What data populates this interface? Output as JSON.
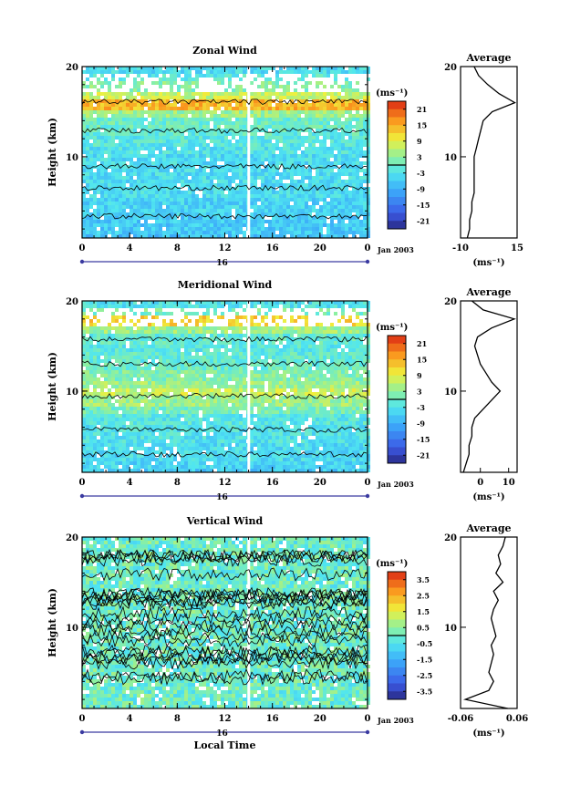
{
  "chart_data": [
    {
      "type": "heatmap",
      "title": "Zonal Wind",
      "xlabel": "",
      "ylabel": "Height (km)",
      "x_ticks": [
        "0",
        "4",
        "8",
        "12",
        "16",
        "20",
        "0"
      ],
      "y_ticks": [
        "10",
        "20"
      ],
      "xlim": [
        0,
        24
      ],
      "ylim": [
        1,
        20
      ],
      "date_label": "16",
      "date_suffix": "Jan 2003",
      "colorbar": {
        "unit": "(ms⁻¹)",
        "range": [
          -24,
          24
        ],
        "ticks": [
          "21",
          "15",
          "9",
          "3",
          "-3",
          "-9",
          "-15",
          "-21"
        ],
        "zero_line": 0
      },
      "profile": {
        "title": "Average",
        "xlabel": "(ms⁻¹)",
        "x_ticks": [
          "-10",
          "15"
        ],
        "xlim": [
          -10,
          15
        ],
        "y_ticks": [
          "10",
          "20"
        ],
        "height_km": [
          1,
          2,
          3,
          4,
          5,
          6,
          7,
          8,
          9,
          10,
          11,
          12,
          13,
          14,
          15,
          16,
          17,
          18,
          19,
          20
        ],
        "values": [
          -7,
          -6,
          -6,
          -5,
          -5,
          -4,
          -4,
          -4,
          -4,
          -4,
          -3,
          -2,
          -1,
          0,
          4,
          14,
          7,
          2,
          -2,
          -4
        ]
      }
    },
    {
      "type": "heatmap",
      "title": "Meridional Wind",
      "xlabel": "",
      "ylabel": "Height (km)",
      "x_ticks": [
        "0",
        "4",
        "8",
        "12",
        "16",
        "20",
        "0"
      ],
      "y_ticks": [
        "10",
        "20"
      ],
      "xlim": [
        0,
        24
      ],
      "ylim": [
        1,
        20
      ],
      "date_label": "16",
      "date_suffix": "Jan 2003",
      "colorbar": {
        "unit": "(ms⁻¹)",
        "range": [
          -24,
          24
        ],
        "ticks": [
          "21",
          "15",
          "9",
          "3",
          "-3",
          "-9",
          "-15",
          "-21"
        ],
        "zero_line": 0
      },
      "profile": {
        "title": "Average",
        "xlabel": "(ms⁻¹)",
        "x_ticks": [
          "0",
          "10"
        ],
        "xlim": [
          -7,
          13
        ],
        "y_ticks": [
          "10",
          "20"
        ],
        "height_km": [
          1,
          2,
          3,
          4,
          5,
          6,
          7,
          8,
          9,
          10,
          11,
          12,
          13,
          14,
          15,
          16,
          17,
          18,
          19,
          20
        ],
        "values": [
          -6,
          -5,
          -4,
          -4,
          -3,
          -3,
          -2,
          1,
          4,
          7,
          4,
          2,
          0,
          -1,
          -2,
          -1,
          4,
          12,
          1,
          -3
        ]
      }
    },
    {
      "type": "heatmap",
      "title": "Vertical Wind",
      "xlabel": "Local Time",
      "ylabel": "Height (km)",
      "x_ticks": [
        "0",
        "4",
        "8",
        "12",
        "16",
        "20",
        "0"
      ],
      "y_ticks": [
        "10",
        "20"
      ],
      "xlim": [
        0,
        24
      ],
      "ylim": [
        1,
        20
      ],
      "date_label": "16",
      "date_suffix": "Jan 2003",
      "colorbar": {
        "unit": "(ms⁻¹)",
        "range": [
          -4,
          4
        ],
        "ticks": [
          "3.5",
          "2.5",
          "1.5",
          "0.5",
          "-0.5",
          "-1.5",
          "-2.5",
          "-3.5"
        ],
        "zero_line": 0
      },
      "profile": {
        "title": "Average",
        "xlabel": "(ms⁻¹)",
        "x_ticks": [
          "-0.06",
          "0.06"
        ],
        "xlim": [
          -0.06,
          0.06
        ],
        "y_ticks": [
          "10",
          "20"
        ],
        "height_km": [
          1,
          2,
          3,
          4,
          5,
          6,
          7,
          8,
          9,
          10,
          11,
          12,
          13,
          14,
          15,
          16,
          17,
          18,
          19,
          20
        ],
        "values": [
          0.04,
          -0.05,
          0.0,
          0.01,
          0.0,
          0.005,
          0.01,
          0.005,
          0.015,
          0.01,
          0.005,
          0.01,
          0.02,
          0.01,
          0.03,
          0.015,
          0.025,
          0.02,
          0.03,
          0.035
        ]
      }
    }
  ]
}
